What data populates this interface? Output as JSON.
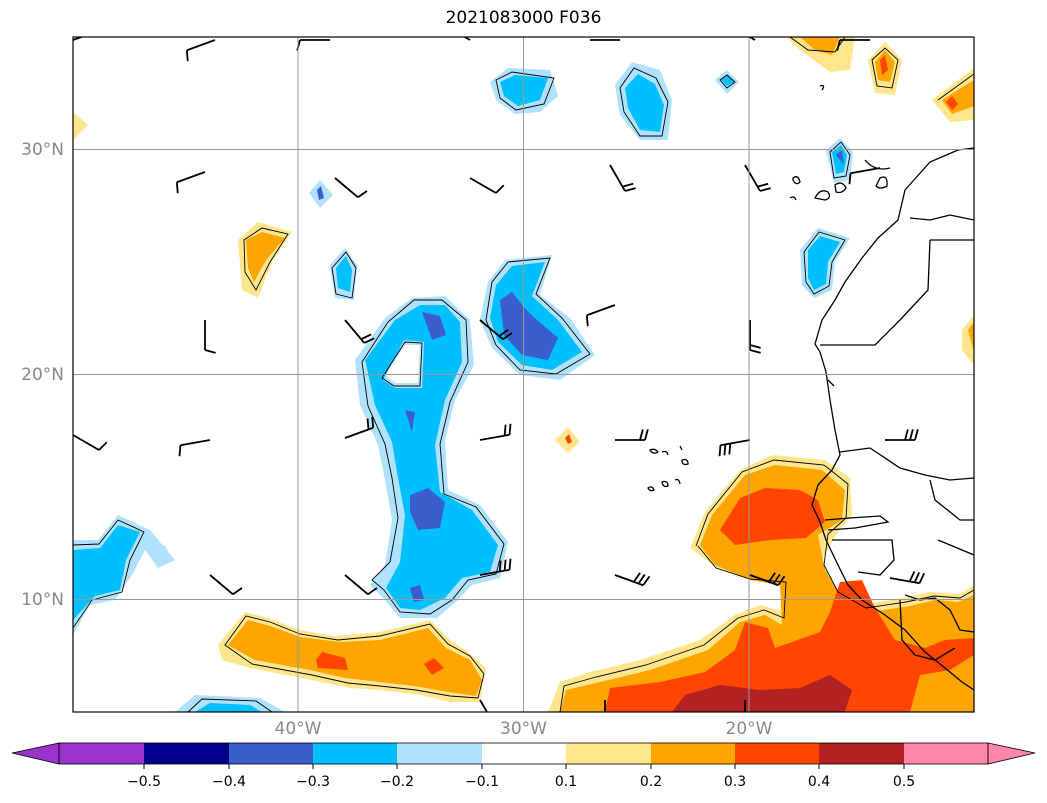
{
  "title": "2021083000 F036",
  "lat_labels": [
    "30°N",
    "20°N",
    "10°N"
  ],
  "lon_labels": [
    "40°W",
    "30°W",
    "20°W"
  ],
  "colorbar": {
    "ticks": [
      "−0.5",
      "−0.4",
      "−0.3",
      "−0.2",
      "−0.1",
      "0.1",
      "0.2",
      "0.3",
      "0.4",
      "0.5"
    ],
    "colors": [
      "#9933cc",
      "#00008b",
      "#3a5fcd",
      "#00bfff",
      "#b0e2ff",
      "#ffffff",
      "#ffe68c",
      "#ffa500",
      "#ff4500",
      "#b22222",
      "#ff88aa"
    ]
  },
  "map": {
    "extent": {
      "lon": [
        -50,
        -10
      ],
      "lat": [
        5,
        35
      ]
    },
    "gridlines": true,
    "fill_colors": {
      "lblue": "#b0e2ff",
      "blue": "#00bfff",
      "dblue": "#3a5fcd",
      "navy": "#00008b",
      "yellow": "#ffe68c",
      "orange": "#ffa500",
      "red": "#ff4500",
      "dred": "#b22222"
    }
  }
}
